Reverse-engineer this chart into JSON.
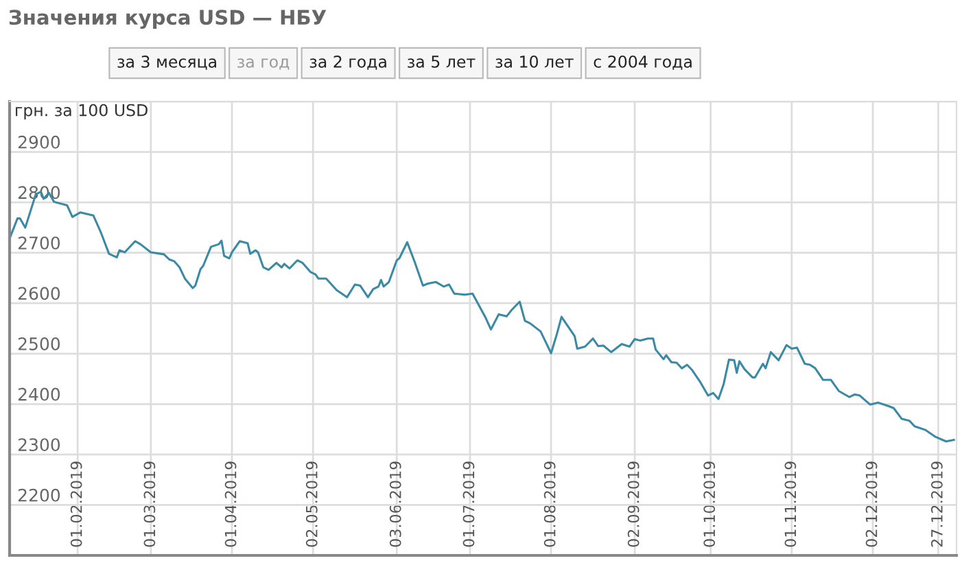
{
  "chart_data": {
    "type": "line",
    "title": "Значения курса USD — НБУ",
    "ylabel": "грн. за 100 USD",
    "annotations": [
      "за 3 месяца",
      "за год",
      "за 2 года",
      "за 5 лет",
      "за 10 лет",
      "с 2004 года"
    ],
    "x": [
      "2019-01-06",
      "2019-01-09",
      "2019-01-10",
      "2019-01-12",
      "2019-01-16",
      "2019-01-18",
      "2019-01-19",
      "2019-01-21",
      "2019-01-23",
      "2019-01-28",
      "2019-01-30",
      "2019-02-02",
      "2019-02-07",
      "2019-02-10",
      "2019-02-13",
      "2019-02-16",
      "2019-02-17",
      "2019-02-19",
      "2019-02-23",
      "2019-02-25",
      "2019-03-01",
      "2019-03-06",
      "2019-03-08",
      "2019-03-10",
      "2019-03-12",
      "2019-03-14",
      "2019-03-17",
      "2019-03-18",
      "2019-03-20",
      "2019-03-21",
      "2019-03-24",
      "2019-03-27",
      "2019-03-28",
      "2019-03-29",
      "2019-03-31",
      "2019-04-01",
      "2019-04-04",
      "2019-04-07",
      "2019-04-08",
      "2019-04-10",
      "2019-04-11",
      "2019-04-13",
      "2019-04-15",
      "2019-04-18",
      "2019-04-20",
      "2019-04-21",
      "2019-04-23",
      "2019-04-26",
      "2019-04-28",
      "2019-05-01",
      "2019-05-03",
      "2019-05-04",
      "2019-05-07",
      "2019-05-11",
      "2019-05-13",
      "2019-05-15",
      "2019-05-18",
      "2019-05-20",
      "2019-05-23",
      "2019-05-25",
      "2019-05-27",
      "2019-05-28",
      "2019-05-29",
      "2019-05-31",
      "2019-06-03",
      "2019-06-04",
      "2019-06-07",
      "2019-06-10",
      "2019-06-13",
      "2019-06-15",
      "2019-06-18",
      "2019-06-21",
      "2019-06-23",
      "2019-06-25",
      "2019-06-29",
      "2019-07-02",
      "2019-07-07",
      "2019-07-09",
      "2019-07-12",
      "2019-07-15",
      "2019-07-17",
      "2019-07-20",
      "2019-07-22",
      "2019-07-24",
      "2019-07-28",
      "2019-08-01",
      "2019-08-03",
      "2019-08-05",
      "2019-08-10",
      "2019-08-11",
      "2019-08-14",
      "2019-08-17",
      "2019-08-19",
      "2019-08-21",
      "2019-08-24",
      "2019-08-28",
      "2019-08-31",
      "2019-09-02",
      "2019-09-04",
      "2019-09-07",
      "2019-09-09",
      "2019-09-10",
      "2019-09-13",
      "2019-09-14",
      "2019-09-16",
      "2019-09-18",
      "2019-09-20",
      "2019-09-22",
      "2019-09-24",
      "2019-09-27",
      "2019-09-30",
      "2019-10-02",
      "2019-10-04",
      "2019-10-06",
      "2019-10-08",
      "2019-10-10",
      "2019-10-11",
      "2019-10-12",
      "2019-10-14",
      "2019-10-17",
      "2019-10-18",
      "2019-10-21",
      "2019-10-22",
      "2019-10-24",
      "2019-10-27",
      "2019-10-30",
      "2019-11-01",
      "2019-11-03",
      "2019-11-06",
      "2019-11-08",
      "2019-11-10",
      "2019-11-13",
      "2019-11-16",
      "2019-11-19",
      "2019-11-23",
      "2019-11-25",
      "2019-11-27",
      "2019-12-01",
      "2019-12-04",
      "2019-12-08",
      "2019-12-10",
      "2019-12-13",
      "2019-12-16",
      "2019-12-18",
      "2019-12-22",
      "2019-12-26",
      "2019-12-30",
      "2020-01-02"
    ],
    "series": [
      {
        "color": "#3a8aa6",
        "values": [
          2728,
          2768,
          2768,
          2750,
          2816,
          2821,
          2807,
          2819,
          2801,
          2794,
          2771,
          2780,
          2774,
          2739,
          2698,
          2691,
          2705,
          2701,
          2723,
          2717,
          2701,
          2697,
          2687,
          2683,
          2671,
          2649,
          2630,
          2635,
          2668,
          2674,
          2712,
          2717,
          2724,
          2694,
          2689,
          2701,
          2723,
          2719,
          2698,
          2705,
          2701,
          2671,
          2666,
          2680,
          2671,
          2678,
          2669,
          2685,
          2680,
          2662,
          2657,
          2649,
          2649,
          2626,
          2619,
          2612,
          2637,
          2635,
          2612,
          2628,
          2633,
          2646,
          2633,
          2642,
          2685,
          2689,
          2721,
          2680,
          2635,
          2639,
          2642,
          2633,
          2637,
          2619,
          2617,
          2619,
          2571,
          2548,
          2578,
          2574,
          2587,
          2603,
          2565,
          2560,
          2544,
          2501,
          2535,
          2573,
          2535,
          2510,
          2514,
          2530,
          2515,
          2516,
          2503,
          2519,
          2514,
          2529,
          2526,
          2530,
          2530,
          2508,
          2489,
          2497,
          2483,
          2482,
          2471,
          2478,
          2467,
          2444,
          2417,
          2422,
          2410,
          2440,
          2488,
          2487,
          2462,
          2485,
          2469,
          2453,
          2453,
          2480,
          2471,
          2503,
          2487,
          2517,
          2510,
          2512,
          2480,
          2478,
          2471,
          2448,
          2448,
          2426,
          2414,
          2419,
          2417,
          2399,
          2403,
          2396,
          2392,
          2371,
          2367,
          2356,
          2349,
          2335,
          2326,
          2329
        ]
      }
    ],
    "xlim": [
      "2019-01-06",
      "2020-01-03"
    ],
    "xticks": [
      {
        "value": "2019-02-01",
        "label": "01.02.2019"
      },
      {
        "value": "2019-03-01",
        "label": "01.03.2019"
      },
      {
        "value": "2019-04-01",
        "label": "01.04.2019"
      },
      {
        "value": "2019-05-02",
        "label": "02.05.2019"
      },
      {
        "value": "2019-06-03",
        "label": "03.06.2019"
      },
      {
        "value": "2019-07-01",
        "label": "01.07.2019"
      },
      {
        "value": "2019-08-01",
        "label": "01.08.2019"
      },
      {
        "value": "2019-09-02",
        "label": "02.09.2019"
      },
      {
        "value": "2019-10-01",
        "label": "01.10.2019"
      },
      {
        "value": "2019-11-01",
        "label": "01.11.2019"
      },
      {
        "value": "2019-12-02",
        "label": "02.12.2019"
      },
      {
        "value": "2019-12-27",
        "label": "27.12.2019"
      }
    ],
    "ylim": [
      2100,
      3000
    ],
    "yticks": [
      {
        "value": 2100,
        "label": null
      },
      2200,
      2300,
      2400,
      2500,
      2600,
      2700,
      2800,
      2900,
      {
        "value": 3000,
        "label": null
      }
    ],
    "grid": true
  }
}
